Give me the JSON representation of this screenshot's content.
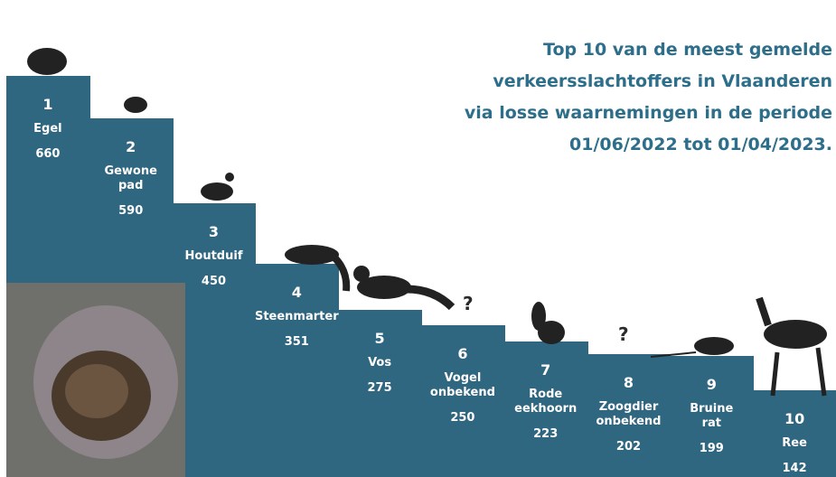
{
  "chart_data": {
    "type": "bar",
    "title_lines": [
      "Top 10 van de meest gemelde",
      "verkeersslachtoffers in Vlaanderen",
      "via losse waarnemingen in de periode",
      "01/06/2022 tot 01/04/2023."
    ],
    "ranks": [
      1,
      2,
      3,
      4,
      5,
      6,
      7,
      8,
      9,
      10
    ],
    "categories": [
      "Egel",
      "Gewone pad",
      "Houtduif",
      "Steenmarter",
      "Vos",
      "Vogel onbekend",
      "Rode eekhoorn",
      "Zoogdier onbekend",
      "Bruine rat",
      "Ree"
    ],
    "values": [
      660,
      590,
      450,
      351,
      275,
      250,
      223,
      202,
      199,
      142
    ],
    "unknown_marker": "?",
    "color": "#2f6680"
  }
}
